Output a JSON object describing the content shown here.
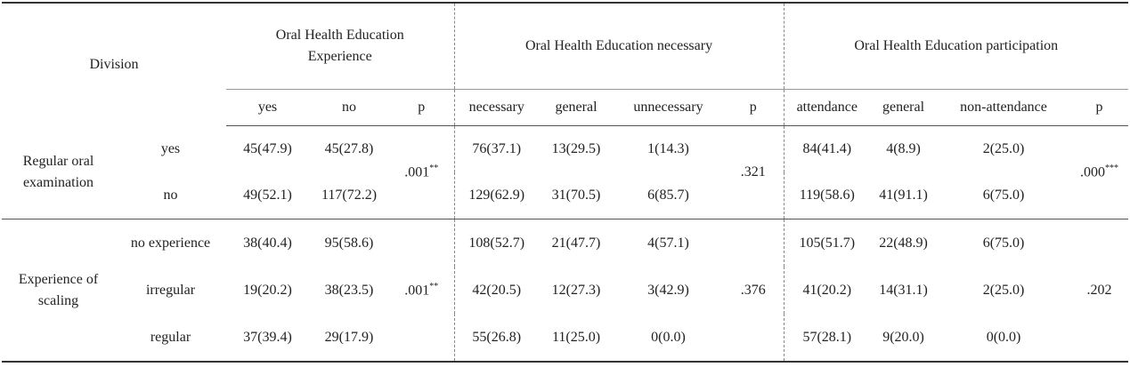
{
  "header": {
    "division": "Division",
    "groups": [
      "Oral Health Education Experience",
      "Oral Health Education necessary",
      "Oral Health Education participation"
    ],
    "columns": [
      [
        "yes",
        "no",
        "p"
      ],
      [
        "necessary",
        "general",
        "unnecessary",
        "p"
      ],
      [
        "attendance",
        "general",
        "non-attendance",
        "p"
      ]
    ]
  },
  "sections": [
    {
      "label": "Regular oral examination",
      "rows": [
        {
          "label": "yes",
          "cells": [
            [
              "45(47.9)",
              "45(27.8)"
            ],
            [
              "76(37.1)",
              "13(29.5)",
              "1(14.3)"
            ],
            [
              "84(41.4)",
              "4(8.9)",
              "2(25.0)"
            ]
          ]
        },
        {
          "label": "no",
          "cells": [
            [
              "49(52.1)",
              "117(72.2)"
            ],
            [
              "129(62.9)",
              "31(70.5)",
              "6(85.7)"
            ],
            [
              "119(58.6)",
              "41(91.1)",
              "6(75.0)"
            ]
          ]
        }
      ],
      "p": [
        {
          "value": ".001",
          "sig": "**"
        },
        {
          "value": ".321"
        },
        {
          "value": ".000",
          "sig": "***"
        }
      ]
    },
    {
      "label": "Experience of scaling",
      "rows": [
        {
          "label": "no experience",
          "cells": [
            [
              "38(40.4)",
              "95(58.6)"
            ],
            [
              "108(52.7)",
              "21(47.7)",
              "4(57.1)"
            ],
            [
              "105(51.7)",
              "22(48.9)",
              "6(75.0)"
            ]
          ]
        },
        {
          "label": "irregular",
          "cells": [
            [
              "19(20.2)",
              "38(23.5)"
            ],
            [
              "42(20.5)",
              "12(27.3)",
              "3(42.9)"
            ],
            [
              "41(20.2)",
              "14(31.1)",
              "2(25.0)"
            ]
          ]
        },
        {
          "label": "regular",
          "cells": [
            [
              "37(39.4)",
              "29(17.9)"
            ],
            [
              "55(26.8)",
              "11(25.0)",
              "0(0.0)"
            ],
            [
              "57(28.1)",
              "9(20.0)",
              "0(0.0)"
            ]
          ]
        }
      ],
      "p": [
        {
          "value": ".001",
          "sig": "**"
        },
        {
          "value": ".376"
        },
        {
          "value": ".202"
        }
      ]
    }
  ]
}
